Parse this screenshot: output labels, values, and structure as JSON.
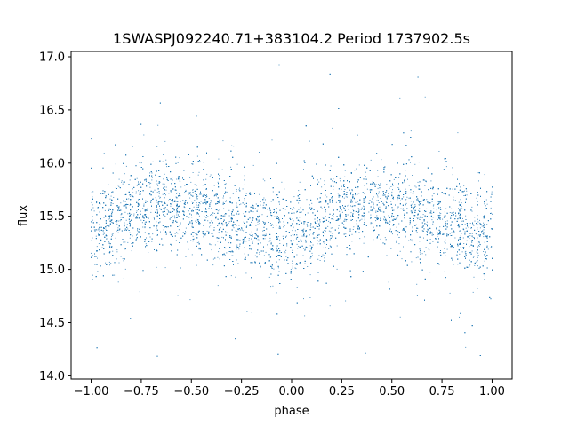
{
  "chart_data": {
    "type": "scatter",
    "title": "1SWASPJ092240.71+383104.2 Period 1737902.5s",
    "xlabel": "phase",
    "ylabel": "flux",
    "xlim": [
      -1.1,
      1.1
    ],
    "ylim": [
      13.97,
      17.05
    ],
    "xticks": [
      -1.0,
      -0.75,
      -0.5,
      -0.25,
      0.0,
      0.25,
      0.5,
      0.75,
      1.0
    ],
    "xtick_labels": [
      "−1.00",
      "−0.75",
      "−0.50",
      "−0.25",
      "0.00",
      "0.25",
      "0.50",
      "0.75",
      "1.00"
    ],
    "yticks": [
      14.0,
      14.5,
      15.0,
      15.5,
      16.0,
      16.5,
      17.0
    ],
    "ytick_labels": [
      "14.0",
      "14.5",
      "15.0",
      "15.5",
      "16.0",
      "16.5",
      "17.0"
    ],
    "grid": false,
    "marker_color": "#1f77b4",
    "series": [
      {
        "note_profile_phase": [
          -1.0,
          -0.9,
          -0.8,
          -0.7,
          -0.6,
          -0.5,
          -0.4,
          -0.3,
          -0.2,
          -0.1,
          0.0,
          0.1,
          0.2,
          0.3,
          0.4,
          0.5,
          0.6,
          0.7,
          0.8,
          0.9,
          1.0
        ],
        "mean_flux": [
          15.3,
          15.45,
          15.5,
          15.6,
          15.6,
          15.55,
          15.55,
          15.45,
          15.4,
          15.35,
          15.3,
          15.4,
          15.5,
          15.6,
          15.6,
          15.55,
          15.55,
          15.45,
          15.4,
          15.35,
          15.3
        ],
        "scatter_sigma": 0.2,
        "n_points": 9000
      }
    ]
  }
}
